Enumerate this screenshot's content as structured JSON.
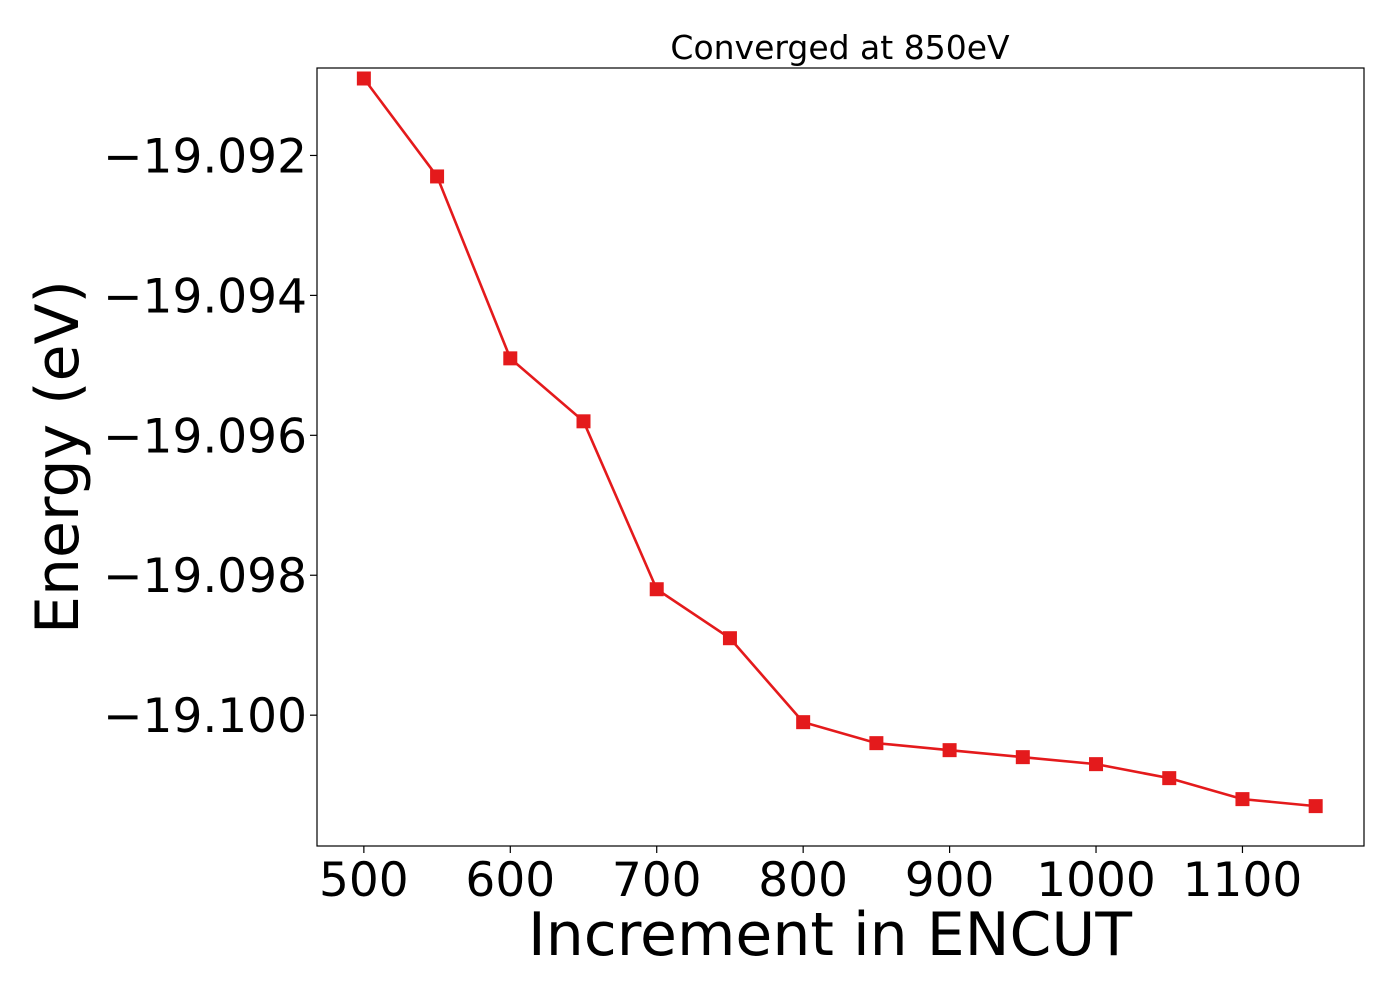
{
  "chart_data": {
    "type": "line",
    "title": "Converged at 850eV",
    "xlabel": "Increment in ENCUT",
    "ylabel": "Energy (eV)",
    "xlim": [
      468,
      1183
    ],
    "ylim": [
      -19.10187,
      -19.09075
    ],
    "xticks": [
      500,
      600,
      700,
      800,
      900,
      1000,
      1100
    ],
    "yticks": [
      -19.092,
      -19.094,
      -19.096,
      -19.098,
      -19.1
    ],
    "ytick_labels": [
      "−19.092",
      "−19.094",
      "−19.096",
      "−19.098",
      "−19.100"
    ],
    "grid": false,
    "marker": "square",
    "series_color": "#e41a1c",
    "series": [
      {
        "x": [
          500,
          550,
          600,
          650,
          700,
          750,
          800,
          850,
          900,
          950,
          1000,
          1050,
          1100,
          1150
        ],
        "values": [
          -19.0909,
          -19.0923,
          -19.0949,
          -19.0958,
          -19.0982,
          -19.0989,
          -19.1001,
          -19.1004,
          -19.1005,
          -19.1006,
          -19.1007,
          -19.1009,
          -19.1012,
          -19.1013
        ]
      }
    ]
  }
}
